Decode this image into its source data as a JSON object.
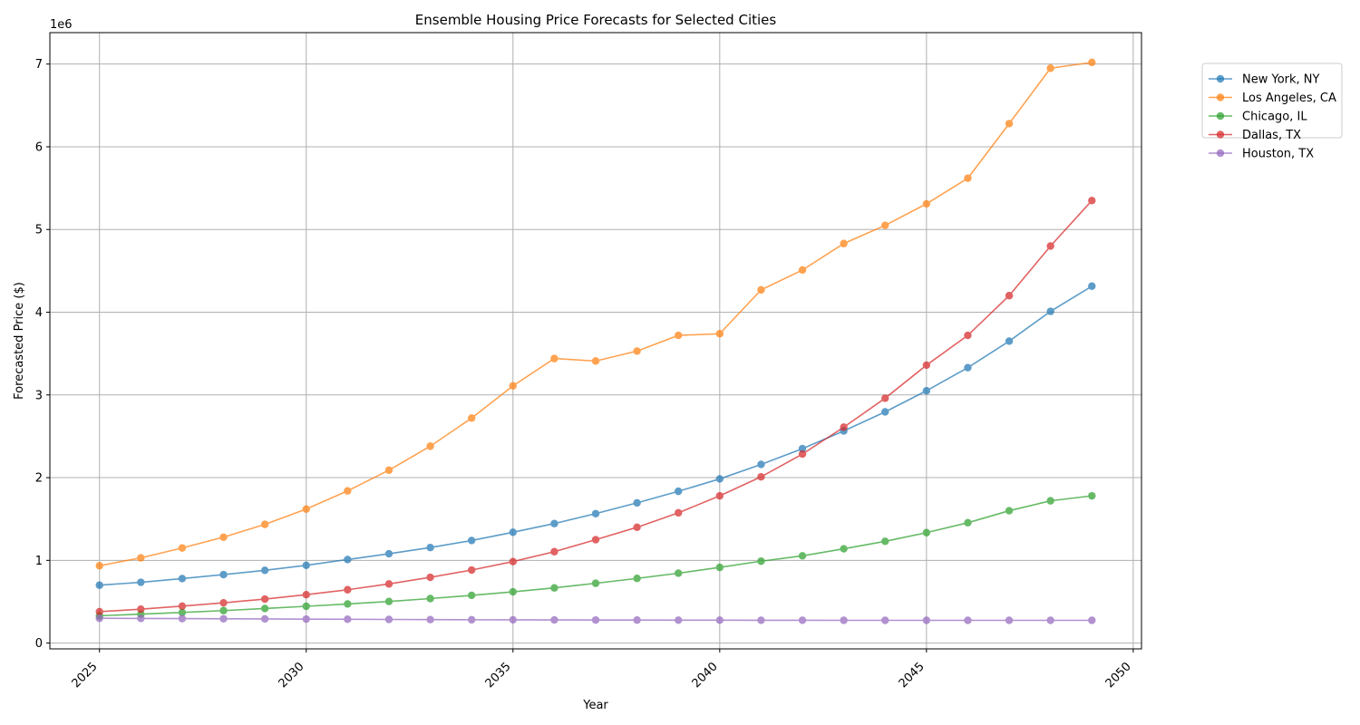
{
  "chart_data": {
    "type": "line",
    "title": "Ensemble Housing Price Forecasts for Selected Cities",
    "xlabel": "Year",
    "ylabel": "Forecasted Price ($)",
    "y_offset_label": "1e6",
    "xlim": [
      2023.8,
      2050.2
    ],
    "ylim": [
      -70000,
      7380000
    ],
    "x_ticks": [
      2025,
      2030,
      2035,
      2040,
      2045,
      2050
    ],
    "x_tick_labels": [
      "2025",
      "2030",
      "2035",
      "2040",
      "2045",
      "2050"
    ],
    "y_ticks": [
      0,
      1000000,
      2000000,
      3000000,
      4000000,
      5000000,
      6000000,
      7000000
    ],
    "y_tick_labels": [
      "0",
      "1",
      "2",
      "3",
      "4",
      "5",
      "6",
      "7"
    ],
    "grid": true,
    "legend_position": "outside-top-right",
    "x": [
      2025,
      2026,
      2027,
      2028,
      2029,
      2030,
      2031,
      2032,
      2033,
      2034,
      2035,
      2036,
      2037,
      2038,
      2039,
      2040,
      2041,
      2042,
      2043,
      2044,
      2045,
      2046,
      2047,
      2048,
      2049
    ],
    "series": [
      {
        "name": "New York, NY",
        "color": "#1f77b4",
        "values": [
          700000,
          735000,
          780000,
          828000,
          880000,
          940000,
          1010000,
          1080000,
          1155000,
          1240000,
          1340000,
          1445000,
          1565000,
          1695000,
          1835000,
          1985000,
          2160000,
          2350000,
          2565000,
          2795000,
          3050000,
          3330000,
          3650000,
          4010000,
          4315000
        ]
      },
      {
        "name": "Los Angeles, CA",
        "color": "#ff7f0e",
        "values": [
          935000,
          1030000,
          1150000,
          1280000,
          1435000,
          1620000,
          1840000,
          2090000,
          2380000,
          2720000,
          3110000,
          3440000,
          3410000,
          3530000,
          3720000,
          3740000,
          4270000,
          4510000,
          4830000,
          5050000,
          5310000,
          5620000,
          6280000,
          6950000,
          7020000
        ]
      },
      {
        "name": "Chicago, IL",
        "color": "#2ca02c",
        "values": [
          330000,
          350000,
          370000,
          393000,
          418000,
          445000,
          473000,
          503000,
          538000,
          577000,
          620000,
          667000,
          723000,
          782000,
          845000,
          915000,
          990000,
          1055000,
          1140000,
          1230000,
          1335000,
          1455000,
          1600000,
          1720000,
          1780000
        ]
      },
      {
        "name": "Dallas, TX",
        "color": "#d62728",
        "values": [
          380000,
          410000,
          447000,
          487000,
          532000,
          585000,
          645000,
          715000,
          795000,
          883000,
          985000,
          1105000,
          1250000,
          1400000,
          1575000,
          1780000,
          2010000,
          2285000,
          2610000,
          2960000,
          3360000,
          3720000,
          4200000,
          4800000,
          5350000
        ]
      },
      {
        "name": "Houston, TX",
        "color": "#9467bd",
        "values": [
          300000,
          298000,
          296000,
          294000,
          292000,
          290000,
          288000,
          286000,
          284000,
          282000,
          281000,
          280000,
          279000,
          278000,
          277000,
          277000,
          276000,
          276000,
          275000,
          275000,
          275000,
          275000,
          275000,
          275000,
          275000
        ]
      }
    ]
  }
}
